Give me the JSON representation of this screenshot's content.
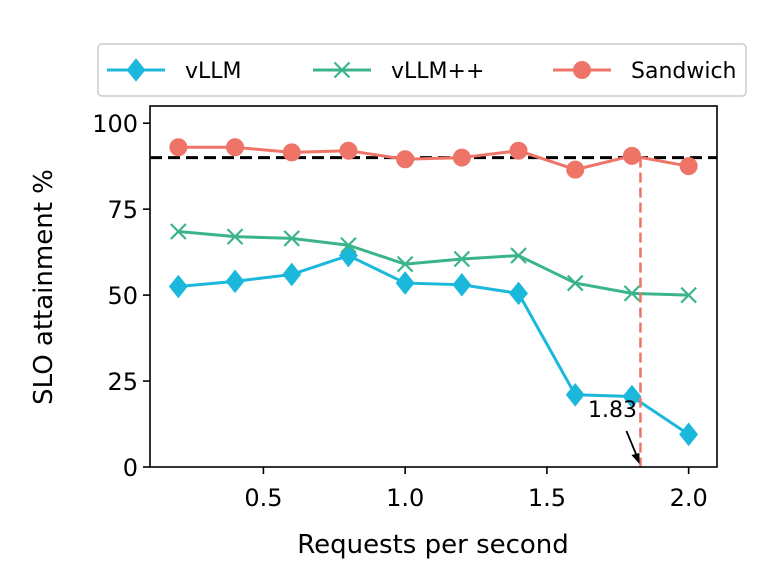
{
  "chart_data": {
    "type": "line",
    "title": "",
    "xlabel": "Requests per second",
    "ylabel": "SLO attainment %",
    "xlim": [
      0.1,
      2.1
    ],
    "ylim": [
      0,
      105
    ],
    "xticks": [
      0.5,
      1.0,
      1.5,
      2.0
    ],
    "xtick_labels": [
      "0.5",
      "1.0",
      "1.5",
      "2.0"
    ],
    "yticks": [
      0,
      25,
      50,
      75,
      100
    ],
    "ytick_labels": [
      "0",
      "25",
      "50",
      "75",
      "100"
    ],
    "x": [
      0.2,
      0.4,
      0.6,
      0.8,
      1.0,
      1.2,
      1.4,
      1.6,
      1.8,
      2.0
    ],
    "series": [
      {
        "name": "vLLM",
        "color": "#1cb8dc",
        "marker": "diamond",
        "values": [
          52.5,
          54,
          56,
          61.5,
          53.5,
          53,
          50.5,
          21,
          20.5,
          9.5
        ]
      },
      {
        "name": "vLLM++",
        "color": "#3bb48b",
        "marker": "x",
        "values": [
          68.5,
          67,
          66.5,
          64.5,
          59,
          60.5,
          61.5,
          53.5,
          50.5,
          50
        ]
      },
      {
        "name": "Sandwich",
        "color": "#ee7468",
        "marker": "circle",
        "values": [
          93,
          93,
          91.5,
          92,
          89.5,
          90,
          92,
          86.5,
          90.5,
          87.5
        ]
      }
    ],
    "reference_hline": {
      "y": 90,
      "color": "#000000",
      "style": "dashed"
    },
    "reference_vline": {
      "x": 1.83,
      "color": "#ee7468",
      "style": "dashed"
    },
    "annotation": {
      "text": "1.83",
      "x": 1.83,
      "y": 0
    },
    "legend": {
      "placement": "top",
      "ncol": 3
    },
    "grid": false
  }
}
